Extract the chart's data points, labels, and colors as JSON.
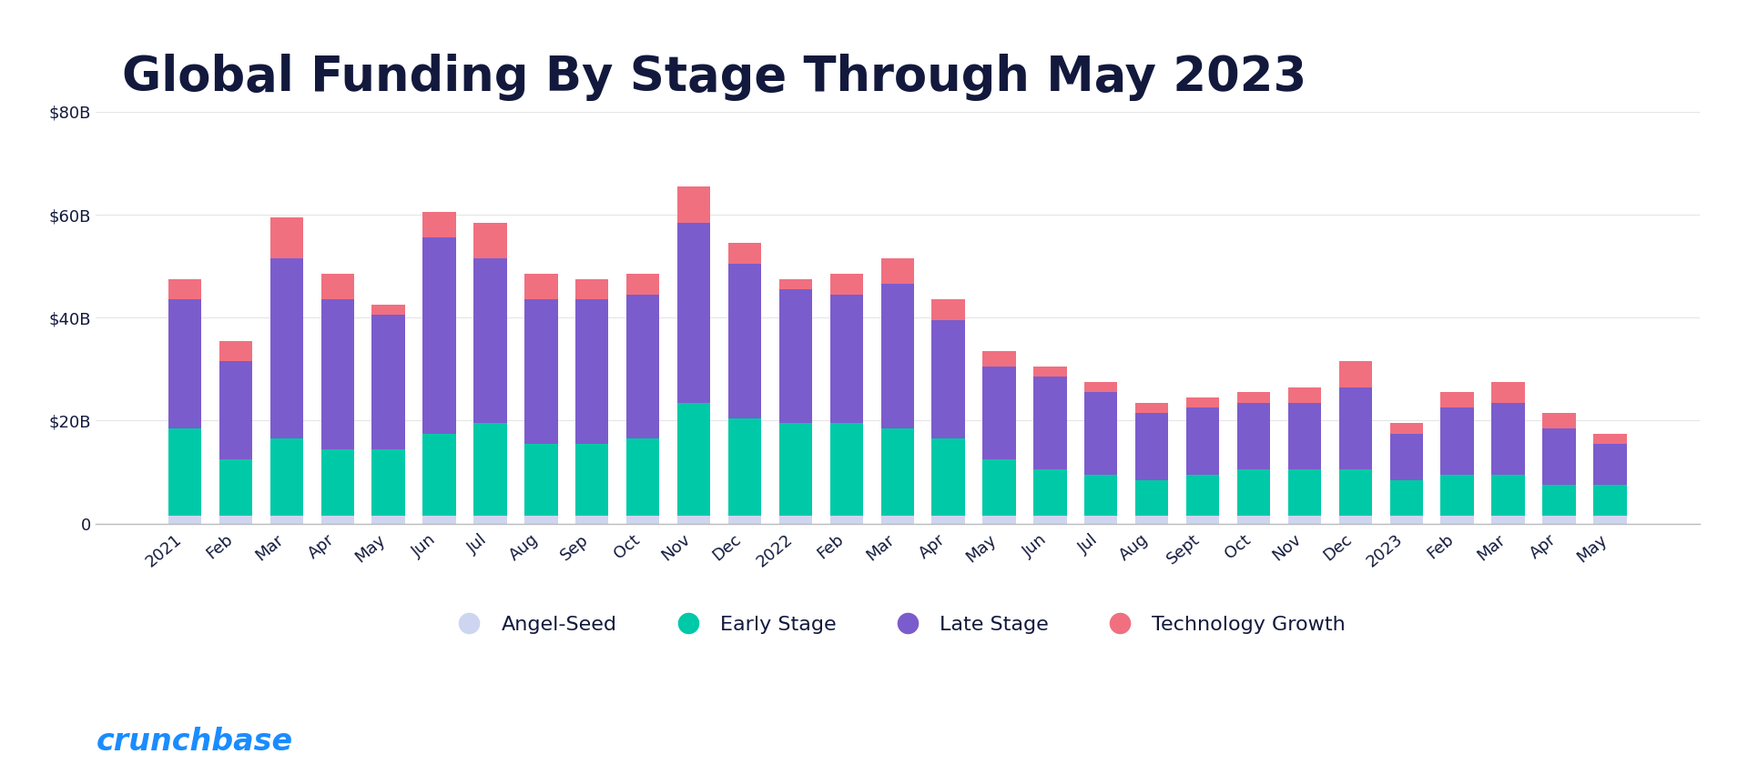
{
  "title": "Global Funding By Stage Through May 2023",
  "background_color": "#ffffff",
  "ylim": [
    0,
    80
  ],
  "yticks": [
    0,
    20,
    40,
    60,
    80
  ],
  "ytick_labels": [
    "0",
    "$20B",
    "$40B",
    "$60B",
    "$80B"
  ],
  "categories": [
    "2021",
    "Feb",
    "Mar",
    "Apr",
    "May",
    "Jun",
    "Jul",
    "Aug",
    "Sep",
    "Oct",
    "Nov",
    "Dec",
    "2022",
    "Feb",
    "Mar",
    "Apr",
    "May",
    "Jun",
    "Jul",
    "Aug",
    "Sept",
    "Oct",
    "Nov",
    "Dec",
    "2023",
    "Feb",
    "Mar",
    "Apr",
    "May"
  ],
  "angel_seed": [
    1.5,
    1.5,
    1.5,
    1.5,
    1.5,
    1.5,
    1.5,
    1.5,
    1.5,
    1.5,
    1.5,
    1.5,
    1.5,
    1.5,
    1.5,
    1.5,
    1.5,
    1.5,
    1.5,
    1.5,
    1.5,
    1.5,
    1.5,
    1.5,
    1.5,
    1.5,
    1.5,
    1.5,
    1.5
  ],
  "early_stage": [
    17,
    11,
    15,
    13,
    13,
    16,
    18,
    14,
    14,
    15,
    22,
    19,
    18,
    18,
    17,
    15,
    11,
    9,
    8,
    7,
    8,
    9,
    9,
    9,
    7,
    8,
    8,
    6,
    6
  ],
  "late_stage": [
    25,
    19,
    35,
    29,
    26,
    38,
    32,
    28,
    28,
    28,
    35,
    30,
    26,
    25,
    28,
    23,
    18,
    18,
    16,
    13,
    13,
    13,
    13,
    16,
    9,
    13,
    14,
    11,
    8
  ],
  "tech_growth": [
    4,
    4,
    8,
    5,
    2,
    5,
    7,
    5,
    4,
    4,
    7,
    4,
    2,
    4,
    5,
    4,
    3,
    2,
    2,
    2,
    2,
    2,
    3,
    5,
    2,
    3,
    4,
    3,
    2
  ],
  "colors": {
    "angel_seed": "#cdd5f0",
    "early_stage": "#00c9a7",
    "late_stage": "#7b5ccc",
    "tech_growth": "#f07080"
  },
  "legend_labels": [
    "Angel-Seed",
    "Early Stage",
    "Late Stage",
    "Technology Growth"
  ],
  "title_fontsize": 38,
  "tick_fontsize": 13,
  "legend_fontsize": 16,
  "crunchbase_color": "#1a8cff",
  "crunchbase_text": "crunchbase",
  "title_color": "#12193d",
  "tick_color": "#12193d",
  "grid_color": "#e5e5e5",
  "bar_width": 0.65
}
